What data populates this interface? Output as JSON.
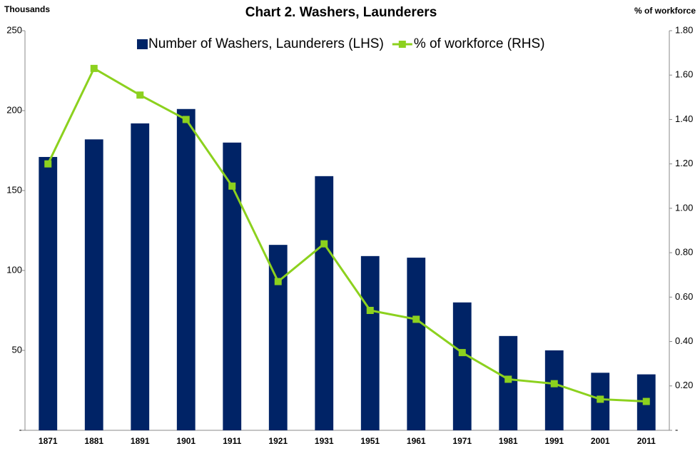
{
  "chart_data": {
    "type": "bar_line",
    "title": "Chart 2. Washers, Launderers",
    "y_axis_label": "Thousands",
    "y2_axis_label": "% of workforce",
    "categories": [
      "1871",
      "1881",
      "1891",
      "1901",
      "1911",
      "1921",
      "1931",
      "1951",
      "1961",
      "1971",
      "1981",
      "1991",
      "2001",
      "2011"
    ],
    "series": [
      {
        "name": "Number of Washers, Launderers (LHS)",
        "type": "bar",
        "color": "#002366",
        "values": [
          171,
          182,
          192,
          201,
          180,
          116,
          159,
          109,
          108,
          80,
          59,
          50,
          36,
          35
        ]
      },
      {
        "name": "% of workforce (RHS)",
        "type": "line",
        "axis": "y2",
        "color": "#8cd11e",
        "values": [
          1.2,
          1.63,
          1.51,
          1.4,
          1.1,
          0.67,
          0.84,
          0.54,
          0.5,
          0.35,
          0.23,
          0.21,
          0.14,
          0.13
        ]
      }
    ],
    "ylim": [
      0,
      250
    ],
    "yticks": [
      {
        "value": 0,
        "label": "-"
      },
      50,
      100,
      150,
      200,
      250
    ],
    "y2lim": [
      0,
      1.8
    ],
    "y2ticks": [
      {
        "value": 0,
        "label": "-"
      },
      {
        "value": 0.2,
        "label": "0.20"
      },
      {
        "value": 0.4,
        "label": "0.40"
      },
      {
        "value": 0.6,
        "label": "0.60"
      },
      {
        "value": 0.8,
        "label": "0.80"
      },
      {
        "value": 1.0,
        "label": "1.00"
      },
      {
        "value": 1.2,
        "label": "1.20"
      },
      {
        "value": 1.4,
        "label": "1.40"
      },
      {
        "value": 1.6,
        "label": "1.60"
      },
      {
        "value": 1.8,
        "label": "1.80"
      }
    ],
    "legend": "top"
  }
}
